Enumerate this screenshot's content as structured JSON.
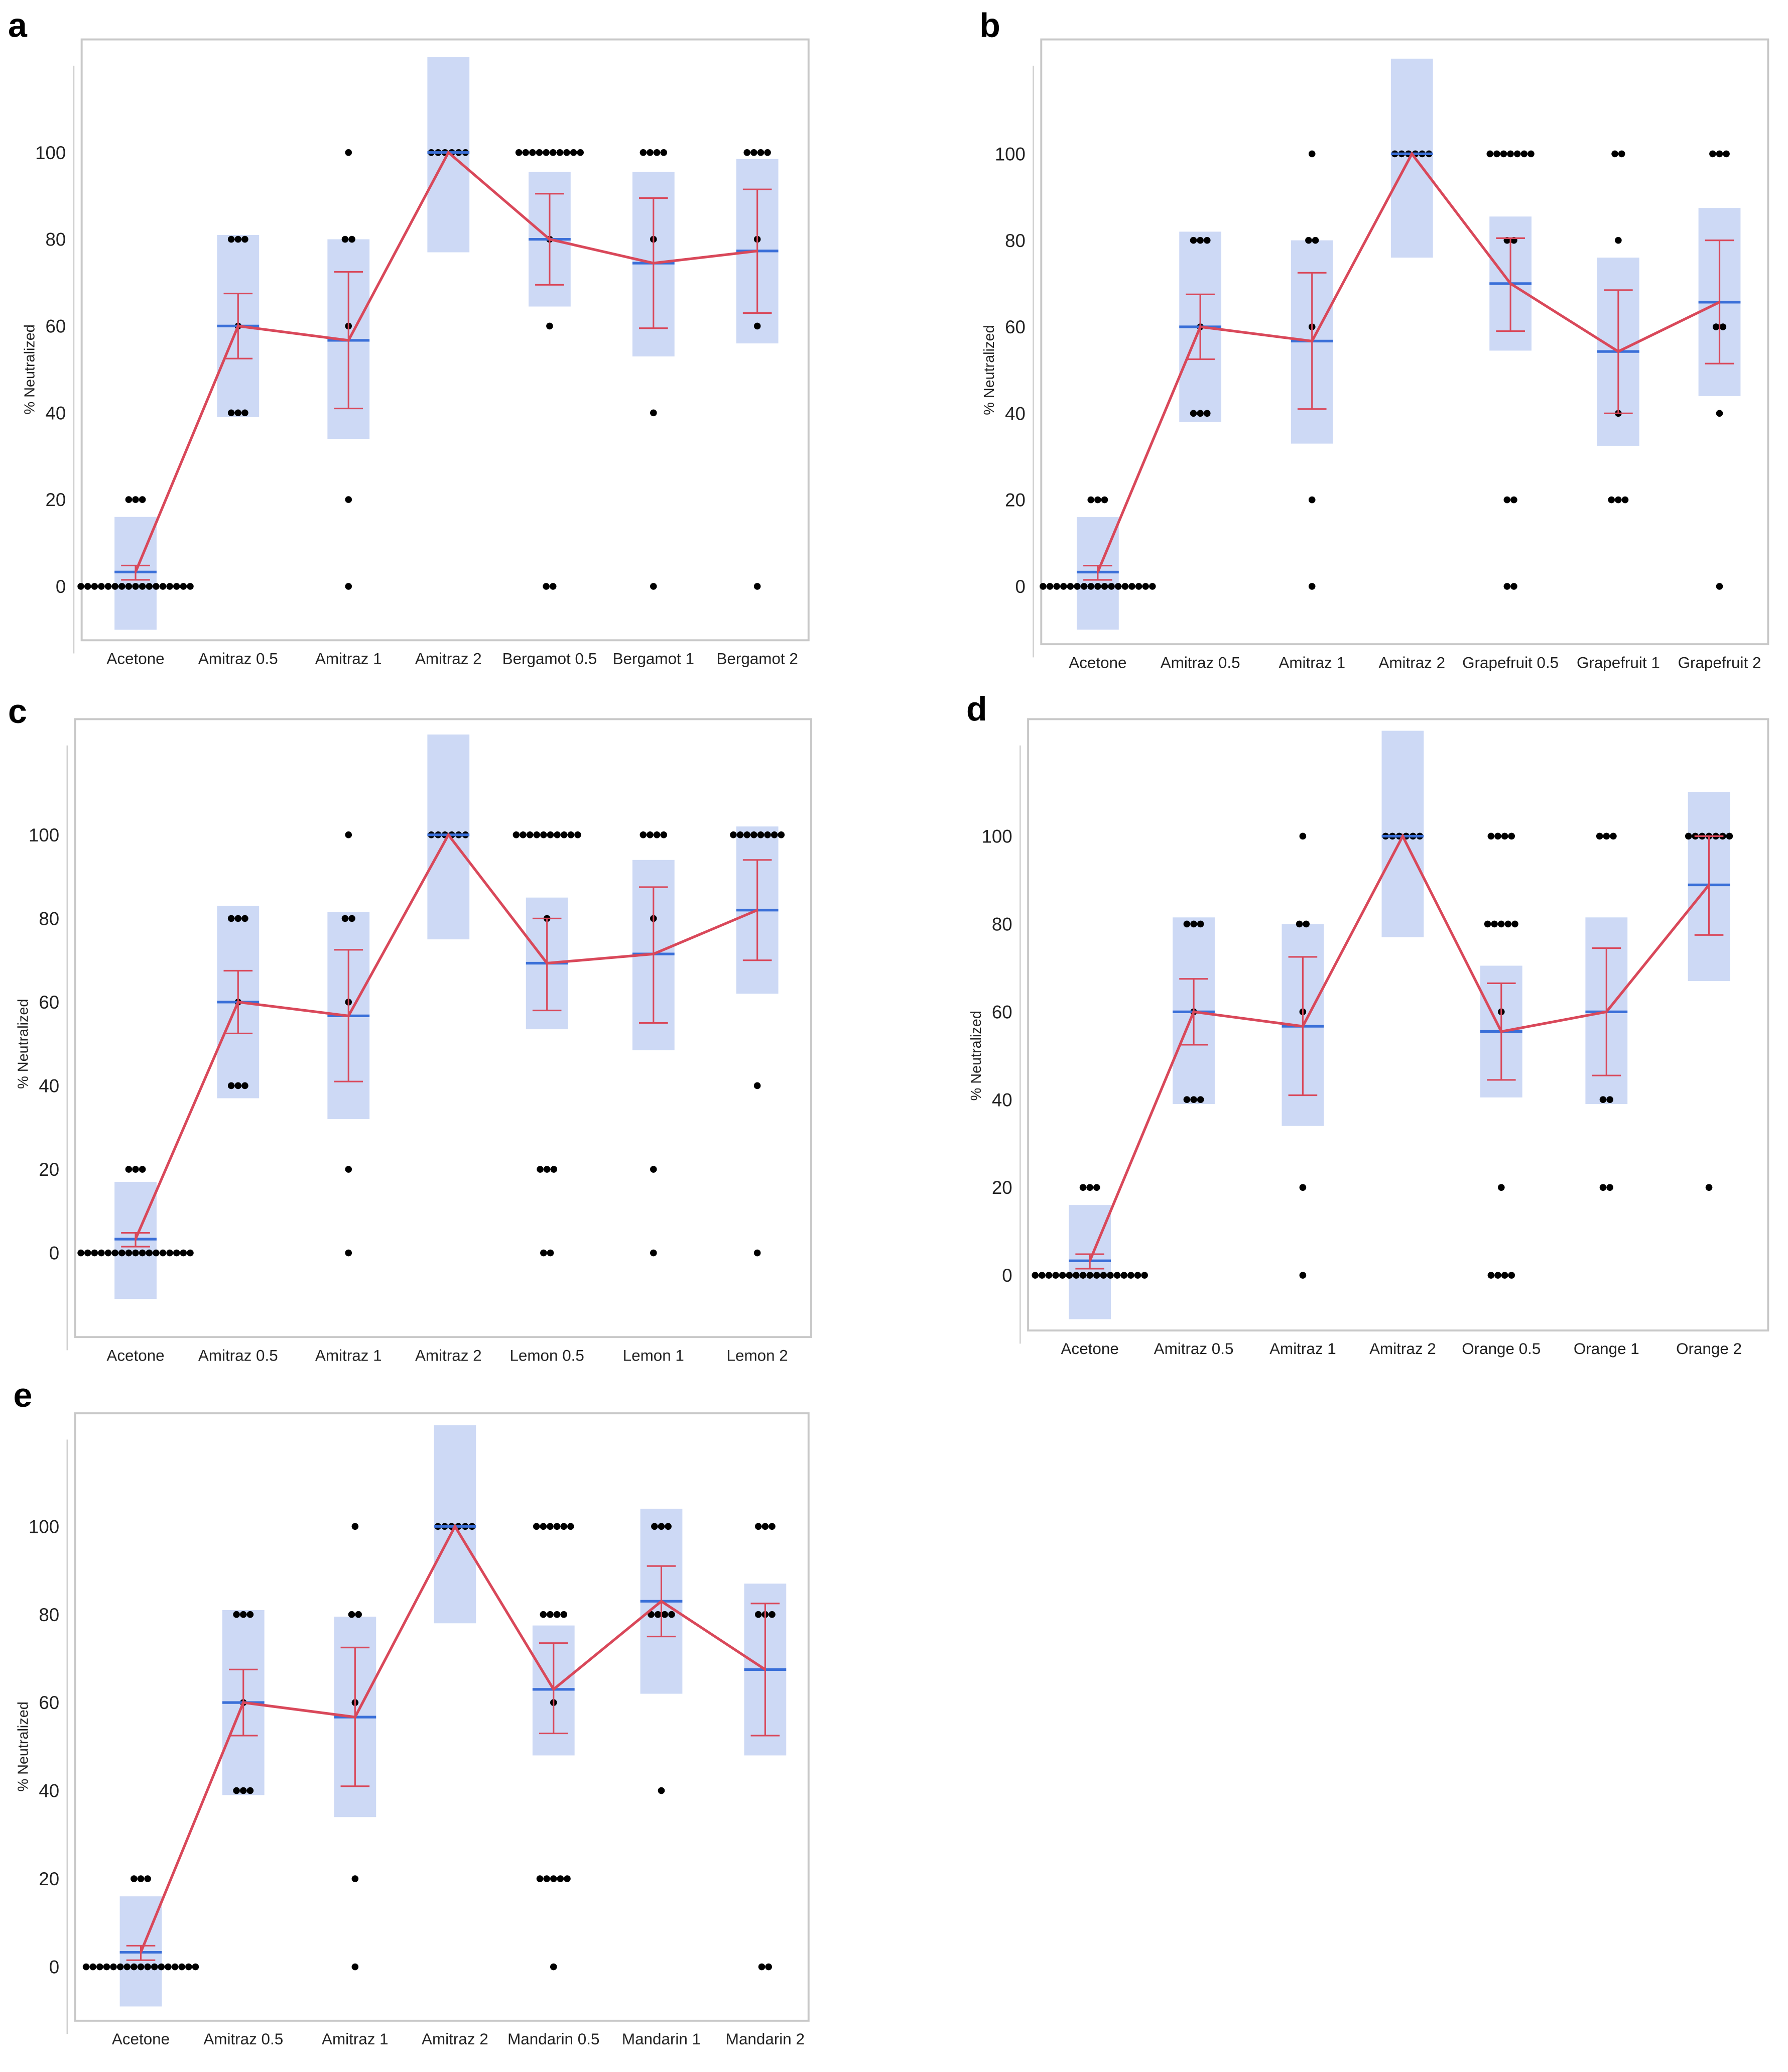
{
  "colors": {
    "box": "#cdd9f5",
    "mean_line": "#3a6fd8",
    "connect": "#d9485a",
    "ci": "#d9485a",
    "point": "#000000",
    "frame": "#c8c8c8"
  },
  "chart_data": [
    {
      "panel": "a",
      "type": "scatter",
      "ylabel": "% Neutralized",
      "yticks": [
        0,
        20,
        40,
        60,
        80,
        100
      ],
      "ylim": [
        -12,
        126
      ],
      "groups": [
        {
          "label": "Acetone",
          "mean": 3.3,
          "ci": [
            1.5,
            4.8
          ],
          "box": [
            -10,
            16
          ],
          "points": [
            [
              0,
              17
            ],
            [
              20,
              3
            ]
          ]
        },
        {
          "label": "Amitraz 0.5",
          "mean": 60,
          "ci": [
            52.5,
            67.5
          ],
          "box": [
            39,
            81
          ],
          "points": [
            [
              80,
              3
            ],
            [
              60,
              1
            ],
            [
              40,
              3
            ]
          ]
        },
        {
          "label": "Amitraz 1",
          "mean": 56.7,
          "ci": [
            41,
            72.5
          ],
          "box": [
            34,
            80
          ],
          "points": [
            [
              100,
              1
            ],
            [
              80,
              2
            ],
            [
              60,
              1
            ],
            [
              20,
              1
            ],
            [
              0,
              1
            ]
          ]
        },
        {
          "label": "Amitraz 2",
          "mean": 100,
          "ci": null,
          "box": [
            77,
            122
          ],
          "points": [
            [
              100,
              6
            ]
          ]
        },
        {
          "label": "Bergamot 0.5",
          "mean": 80,
          "ci": [
            69.5,
            90.5
          ],
          "box": [
            64.5,
            95.5
          ],
          "points": [
            [
              100,
              10
            ],
            [
              80,
              1
            ],
            [
              60,
              1
            ],
            [
              0,
              2
            ]
          ]
        },
        {
          "label": "Bergamot 1",
          "mean": 74.5,
          "ci": [
            59.5,
            89.5
          ],
          "box": [
            53,
            95.5
          ],
          "points": [
            [
              100,
              4
            ],
            [
              80,
              1
            ],
            [
              40,
              1
            ],
            [
              0,
              1
            ]
          ]
        },
        {
          "label": "Bergamot 2",
          "mean": 77.3,
          "ci": [
            63,
            91.5
          ],
          "box": [
            56,
            98.5
          ],
          "points": [
            [
              100,
              4
            ],
            [
              80,
              1
            ],
            [
              60,
              1
            ],
            [
              0,
              1
            ]
          ]
        }
      ]
    },
    {
      "panel": "b",
      "type": "scatter",
      "ylabel": "% Neutralized",
      "yticks": [
        0,
        20,
        40,
        60,
        80,
        100
      ],
      "ylim": [
        -12,
        126
      ],
      "groups": [
        {
          "label": "Acetone",
          "mean": 3.3,
          "ci": [
            1.5,
            4.8
          ],
          "box": [
            -10,
            16
          ],
          "points": [
            [
              0,
              17
            ],
            [
              20,
              3
            ]
          ]
        },
        {
          "label": "Amitraz 0.5",
          "mean": 60,
          "ci": [
            52.5,
            67.5
          ],
          "box": [
            38,
            82
          ],
          "points": [
            [
              80,
              3
            ],
            [
              60,
              1
            ],
            [
              40,
              3
            ]
          ]
        },
        {
          "label": "Amitraz 1",
          "mean": 56.7,
          "ci": [
            41,
            72.5
          ],
          "box": [
            33,
            80
          ],
          "points": [
            [
              100,
              1
            ],
            [
              80,
              2
            ],
            [
              60,
              1
            ],
            [
              20,
              1
            ],
            [
              0,
              1
            ]
          ]
        },
        {
          "label": "Amitraz 2",
          "mean": 100,
          "ci": null,
          "box": [
            76,
            122
          ],
          "points": [
            [
              100,
              6
            ]
          ]
        },
        {
          "label": "Grapefruit 0.5",
          "mean": 70,
          "ci": [
            59,
            80.5
          ],
          "box": [
            54.5,
            85.5
          ],
          "points": [
            [
              100,
              7
            ],
            [
              80,
              2
            ],
            [
              20,
              2
            ],
            [
              0,
              2
            ]
          ]
        },
        {
          "label": "Grapefruit 1",
          "mean": 54.3,
          "ci": [
            40,
            68.5
          ],
          "box": [
            32.5,
            76
          ],
          "points": [
            [
              100,
              2
            ],
            [
              80,
              1
            ],
            [
              40,
              1
            ],
            [
              20,
              3
            ]
          ]
        },
        {
          "label": "Grapefruit 2",
          "mean": 65.7,
          "ci": [
            51.5,
            80
          ],
          "box": [
            44,
            87.5
          ],
          "points": [
            [
              100,
              3
            ],
            [
              60,
              2
            ],
            [
              40,
              1
            ],
            [
              0,
              1
            ]
          ]
        }
      ]
    },
    {
      "panel": "c",
      "type": "scatter",
      "ylabel": "% Neutralized",
      "yticks": [
        0,
        20,
        40,
        60,
        80,
        100
      ],
      "ylim": [
        -12,
        126
      ],
      "groups": [
        {
          "label": "Acetone",
          "mean": 3.3,
          "ci": [
            1.5,
            4.8
          ],
          "box": [
            -11,
            17
          ],
          "points": [
            [
              0,
              17
            ],
            [
              20,
              3
            ]
          ]
        },
        {
          "label": "Amitraz 0.5",
          "mean": 60,
          "ci": [
            52.5,
            67.5
          ],
          "box": [
            37,
            83
          ],
          "points": [
            [
              80,
              3
            ],
            [
              60,
              1
            ],
            [
              40,
              3
            ]
          ]
        },
        {
          "label": "Amitraz 1",
          "mean": 56.7,
          "ci": [
            41,
            72.5
          ],
          "box": [
            32,
            81.5
          ],
          "points": [
            [
              100,
              1
            ],
            [
              80,
              2
            ],
            [
              60,
              1
            ],
            [
              20,
              1
            ],
            [
              0,
              1
            ]
          ]
        },
        {
          "label": "Amitraz 2",
          "mean": 100,
          "ci": null,
          "box": [
            75,
            124
          ],
          "points": [
            [
              100,
              6
            ]
          ]
        },
        {
          "label": "Lemon 0.5",
          "mean": 69.3,
          "ci": [
            58,
            80
          ],
          "box": [
            53.5,
            85
          ],
          "points": [
            [
              100,
              10
            ],
            [
              80,
              1
            ],
            [
              20,
              3
            ],
            [
              0,
              2
            ]
          ]
        },
        {
          "label": "Lemon 1",
          "mean": 71.5,
          "ci": [
            55,
            87.5
          ],
          "box": [
            48.5,
            94
          ],
          "points": [
            [
              100,
              4
            ],
            [
              80,
              1
            ],
            [
              20,
              1
            ],
            [
              0,
              1
            ]
          ]
        },
        {
          "label": "Lemon 2",
          "mean": 82,
          "ci": [
            70,
            94
          ],
          "box": [
            62,
            102
          ],
          "points": [
            [
              100,
              8
            ],
            [
              40,
              1
            ],
            [
              0,
              1
            ]
          ]
        }
      ]
    },
    {
      "panel": "d",
      "type": "scatter",
      "ylabel": "% Neutralized",
      "yticks": [
        0,
        20,
        40,
        60,
        80,
        100
      ],
      "ylim": [
        -12,
        126
      ],
      "groups": [
        {
          "label": "Acetone",
          "mean": 3.3,
          "ci": [
            1.5,
            4.8
          ],
          "box": [
            -10,
            16
          ],
          "points": [
            [
              0,
              17
            ],
            [
              20,
              3
            ]
          ]
        },
        {
          "label": "Amitraz 0.5",
          "mean": 60,
          "ci": [
            52.5,
            67.5
          ],
          "box": [
            39,
            81.5
          ],
          "points": [
            [
              80,
              3
            ],
            [
              60,
              1
            ],
            [
              40,
              3
            ]
          ]
        },
        {
          "label": "Amitraz 1",
          "mean": 56.7,
          "ci": [
            41,
            72.5
          ],
          "box": [
            34,
            80
          ],
          "points": [
            [
              100,
              1
            ],
            [
              80,
              2
            ],
            [
              60,
              1
            ],
            [
              20,
              1
            ],
            [
              0,
              1
            ]
          ]
        },
        {
          "label": "Amitraz 2",
          "mean": 100,
          "ci": null,
          "box": [
            77,
            124
          ],
          "points": [
            [
              100,
              6
            ]
          ]
        },
        {
          "label": "Orange 0.5",
          "mean": 55.5,
          "ci": [
            44.5,
            66.5
          ],
          "box": [
            40.5,
            70.5
          ],
          "points": [
            [
              100,
              4
            ],
            [
              80,
              5
            ],
            [
              60,
              1
            ],
            [
              20,
              1
            ],
            [
              0,
              4
            ]
          ]
        },
        {
          "label": "Orange 1",
          "mean": 60,
          "ci": [
            45.5,
            74.5
          ],
          "box": [
            39,
            81.5
          ],
          "points": [
            [
              100,
              3
            ],
            [
              40,
              2
            ],
            [
              20,
              2
            ]
          ]
        },
        {
          "label": "Orange 2",
          "mean": 88.9,
          "ci": [
            77.5,
            100
          ],
          "box": [
            67,
            110
          ],
          "points": [
            [
              100,
              7
            ],
            [
              20,
              1
            ]
          ]
        }
      ]
    },
    {
      "panel": "e",
      "type": "scatter",
      "ylabel": "% Neutralized",
      "yticks": [
        0,
        20,
        40,
        60,
        80,
        100
      ],
      "ylim": [
        -12,
        126
      ],
      "groups": [
        {
          "label": "Acetone",
          "mean": 3.3,
          "ci": [
            1.5,
            4.8
          ],
          "box": [
            -9,
            16
          ],
          "points": [
            [
              0,
              17
            ],
            [
              20,
              3
            ]
          ]
        },
        {
          "label": "Amitraz 0.5",
          "mean": 60,
          "ci": [
            52.5,
            67.5
          ],
          "box": [
            39,
            81
          ],
          "points": [
            [
              80,
              3
            ],
            [
              60,
              1
            ],
            [
              40,
              3
            ]
          ]
        },
        {
          "label": "Amitraz 1",
          "mean": 56.7,
          "ci": [
            41,
            72.5
          ],
          "box": [
            34,
            79.5
          ],
          "points": [
            [
              100,
              1
            ],
            [
              80,
              2
            ],
            [
              60,
              1
            ],
            [
              20,
              1
            ],
            [
              0,
              1
            ]
          ]
        },
        {
          "label": "Amitraz 2",
          "mean": 100,
          "ci": null,
          "box": [
            78,
            123
          ],
          "points": [
            [
              100,
              6
            ]
          ]
        },
        {
          "label": "Mandarin 0.5",
          "mean": 63,
          "ci": [
            53,
            73.5
          ],
          "box": [
            48,
            77.5
          ],
          "points": [
            [
              100,
              6
            ],
            [
              80,
              4
            ],
            [
              60,
              1
            ],
            [
              20,
              5
            ],
            [
              0,
              1
            ]
          ]
        },
        {
          "label": "Mandarin 1",
          "mean": 83,
          "ci": [
            75,
            91
          ],
          "box": [
            62,
            104
          ],
          "points": [
            [
              100,
              3
            ],
            [
              80,
              4
            ],
            [
              40,
              1
            ]
          ]
        },
        {
          "label": "Mandarin 2",
          "mean": 67.5,
          "ci": [
            52.5,
            82.5
          ],
          "box": [
            48,
            87
          ],
          "points": [
            [
              100,
              3
            ],
            [
              80,
              3
            ],
            [
              0,
              2
            ]
          ]
        }
      ]
    }
  ]
}
